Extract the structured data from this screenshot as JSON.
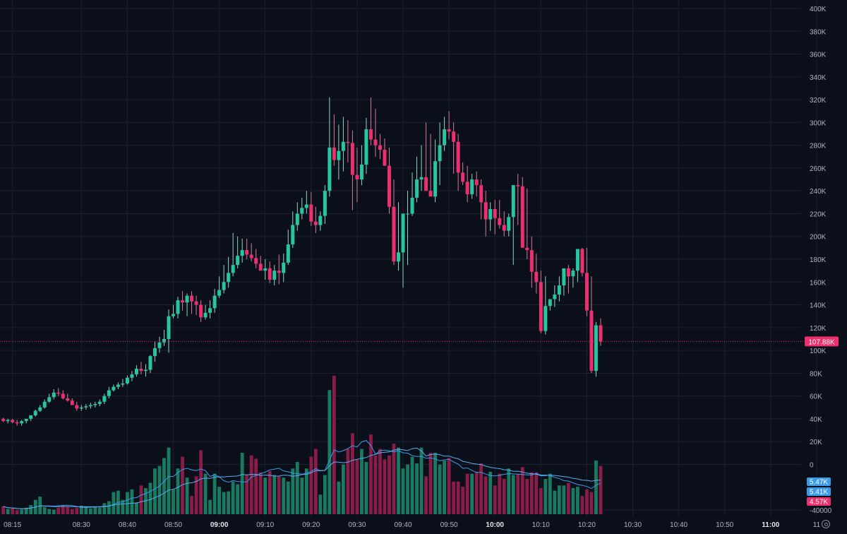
{
  "colors": {
    "background": "#0b0f1a",
    "grid": "#1a2030",
    "axis_text": "#b2b5be",
    "up": "#26c6a0",
    "down": "#ec2f6d",
    "volume_up": "#1a7a5f",
    "volume_down": "#8a1c48",
    "price_line": "#ec2f6d",
    "ma_fast": "#3b9be6",
    "ma_slow": "#5aaef2"
  },
  "icons": {
    "settings": "gear-icon"
  },
  "chart_data": {
    "type": "candlestick",
    "interval_minutes": 1,
    "first_candle_time": "08:13",
    "ylim": [
      -40000,
      400000
    ],
    "y_ticks": [
      "400K",
      "380K",
      "360K",
      "340K",
      "320K",
      "300K",
      "280K",
      "260K",
      "240K",
      "220K",
      "200K",
      "180K",
      "160K",
      "140K",
      "120K",
      "100K",
      "80K",
      "60K",
      "40K",
      "20K",
      "0",
      "-40000"
    ],
    "y_tick_values": [
      400000,
      380000,
      360000,
      340000,
      320000,
      300000,
      280000,
      260000,
      240000,
      220000,
      200000,
      180000,
      160000,
      140000,
      120000,
      100000,
      80000,
      60000,
      40000,
      20000,
      0,
      -40000
    ],
    "x_ticks": [
      "08:15",
      "08:30",
      "08:40",
      "08:50",
      "09:00",
      "09:10",
      "09:20",
      "09:30",
      "09:40",
      "09:50",
      "10:00",
      "10:10",
      "10:20",
      "10:30",
      "10:40",
      "10:50",
      "11:00",
      "11"
    ],
    "x_tick_minutes": [
      2,
      17,
      27,
      37,
      47,
      57,
      67,
      77,
      87,
      97,
      107,
      117,
      127,
      137,
      147,
      157,
      167,
      177
    ],
    "x_ticks_bold": [
      "09:00",
      "10:00",
      "11:00"
    ],
    "last_price": 107880,
    "last_price_label": "107.88K",
    "volume_labels": [
      "5.47K",
      "5.41K",
      "4.57K"
    ],
    "grid": true,
    "candles": {
      "o": [
        40000,
        38000,
        39000,
        37000,
        36000,
        38000,
        40000,
        43000,
        47000,
        50000,
        55000,
        59000,
        63000,
        62000,
        58000,
        56000,
        52000,
        49000,
        50000,
        51000,
        52000,
        53000,
        55000,
        60000,
        65000,
        68000,
        70000,
        71000,
        76000,
        79000,
        84000,
        82000,
        83000,
        95000,
        102000,
        107000,
        110000,
        130000,
        132000,
        144000,
        142000,
        148000,
        143000,
        140000,
        129000,
        133000,
        137000,
        148000,
        153000,
        160000,
        168000,
        175000,
        183000,
        188000,
        184000,
        181000,
        176000,
        170000,
        172000,
        162000,
        170000,
        168000,
        177000,
        193000,
        210000,
        220000,
        225000,
        228000,
        213000,
        210000,
        218000,
        240000,
        278000,
        267000,
        275000,
        283000,
        282000,
        254000,
        250000,
        263000,
        294000,
        285000,
        280000,
        276000,
        262000,
        226000,
        178000,
        186000,
        220000,
        220000,
        234000,
        250000,
        252000,
        240000,
        235000,
        266000,
        280000,
        294000,
        292000,
        283000,
        256000,
        248000,
        237000,
        250000,
        245000,
        230000,
        215000,
        224000,
        216000,
        210000,
        205000,
        217000,
        245000,
        244000,
        190000,
        188000,
        169000,
        160000,
        117000,
        139000,
        145000,
        149000,
        157000,
        172000,
        165000,
        170000,
        189000,
        168000,
        135000,
        82000,
        122000
      ],
      "h": [
        41000,
        40000,
        40000,
        39000,
        39000,
        40000,
        43000,
        48000,
        52000,
        57000,
        62000,
        66000,
        67000,
        65000,
        62000,
        58000,
        55000,
        52000,
        53000,
        54000,
        55000,
        57000,
        62000,
        68000,
        70000,
        72000,
        75000,
        78000,
        82000,
        87000,
        90000,
        88000,
        96000,
        108000,
        112000,
        118000,
        136000,
        140000,
        147000,
        152000,
        150000,
        152000,
        148000,
        144000,
        140000,
        144000,
        154000,
        165000,
        175000,
        182000,
        203000,
        200000,
        198000,
        198000,
        194000,
        189000,
        183000,
        180000,
        178000,
        175000,
        184000,
        185000,
        206000,
        222000,
        230000,
        234000,
        240000,
        239000,
        226000,
        222000,
        245000,
        322000,
        307000,
        298000,
        305000,
        302000,
        293000,
        278000,
        280000,
        304000,
        322000,
        312000,
        290000,
        286000,
        278000,
        250000,
        230000,
        215000,
        240000,
        256000,
        270000,
        280000,
        300000,
        290000,
        285000,
        300000,
        305000,
        310000,
        300000,
        290000,
        265000,
        262000,
        255000,
        257000,
        250000,
        240000,
        230000,
        232000,
        232000,
        222000,
        220000,
        230000,
        255000,
        252000,
        242000,
        200000,
        185000,
        170000,
        165000,
        141000,
        157000,
        165000,
        170000,
        175000,
        172000,
        180000,
        190000,
        190000,
        165000,
        125000,
        128000
      ],
      "l": [
        37000,
        36000,
        36000,
        34000,
        34000,
        36000,
        38000,
        42000,
        46000,
        49000,
        54000,
        57000,
        60000,
        57000,
        55000,
        53000,
        47000,
        47000,
        48000,
        49000,
        50000,
        51000,
        53000,
        58000,
        64000,
        66000,
        68000,
        70000,
        73000,
        77000,
        79000,
        77000,
        80000,
        90000,
        98000,
        104000,
        98000,
        128000,
        128000,
        135000,
        130000,
        132000,
        131000,
        125000,
        127000,
        128000,
        133000,
        146000,
        150000,
        155000,
        165000,
        172000,
        177000,
        180000,
        178000,
        172000,
        170000,
        162000,
        159000,
        157000,
        158000,
        160000,
        175000,
        190000,
        205000,
        215000,
        220000,
        209000,
        203000,
        205000,
        211000,
        235000,
        262000,
        250000,
        257000,
        265000,
        223000,
        230000,
        245000,
        255000,
        280000,
        270000,
        268000,
        262000,
        220000,
        175000,
        170000,
        155000,
        175000,
        218000,
        230000,
        240000,
        240000,
        235000,
        230000,
        245000,
        275000,
        285000,
        255000,
        240000,
        245000,
        230000,
        233000,
        235000,
        215000,
        200000,
        205000,
        202000,
        207000,
        200000,
        200000,
        175000,
        210000,
        220000,
        180000,
        155000,
        150000,
        115000,
        114000,
        135000,
        138000,
        143000,
        148000,
        150000,
        155000,
        160000,
        165000,
        130000,
        80000,
        77000,
        104000
      ],
      "c": [
        38000,
        39000,
        37000,
        36000,
        38000,
        40000,
        43000,
        47000,
        50000,
        55000,
        59000,
        63000,
        62000,
        58000,
        56000,
        52000,
        49000,
        50000,
        51000,
        52000,
        53000,
        55000,
        60000,
        65000,
        68000,
        70000,
        71000,
        76000,
        79000,
        84000,
        82000,
        83000,
        95000,
        102000,
        107000,
        110000,
        130000,
        132000,
        144000,
        142000,
        148000,
        143000,
        140000,
        129000,
        133000,
        137000,
        148000,
        153000,
        160000,
        168000,
        175000,
        183000,
        188000,
        184000,
        181000,
        176000,
        170000,
        172000,
        162000,
        170000,
        168000,
        177000,
        193000,
        210000,
        220000,
        225000,
        228000,
        213000,
        210000,
        218000,
        240000,
        278000,
        267000,
        275000,
        283000,
        282000,
        254000,
        250000,
        263000,
        294000,
        285000,
        280000,
        276000,
        262000,
        226000,
        178000,
        186000,
        220000,
        220000,
        234000,
        250000,
        252000,
        240000,
        235000,
        266000,
        280000,
        294000,
        292000,
        283000,
        256000,
        248000,
        237000,
        250000,
        245000,
        230000,
        215000,
        224000,
        216000,
        210000,
        205000,
        217000,
        245000,
        244000,
        190000,
        188000,
        169000,
        160000,
        117000,
        139000,
        145000,
        149000,
        157000,
        172000,
        165000,
        170000,
        189000,
        168000,
        135000,
        82000,
        122000,
        107880
      ],
      "v": [
        6000,
        4000,
        4500,
        3000,
        3500,
        5000,
        7000,
        11000,
        13500,
        5500,
        4000,
        3500,
        5000,
        7000,
        6000,
        4000,
        5000,
        6500,
        6000,
        4500,
        6000,
        5000,
        8500,
        10000,
        17000,
        18000,
        11000,
        17000,
        19000,
        9000,
        22000,
        20000,
        24000,
        35000,
        37000,
        43000,
        51000,
        19000,
        35000,
        44000,
        28000,
        14000,
        29000,
        49000,
        31000,
        11000,
        31000,
        21000,
        17000,
        17500,
        25000,
        23000,
        47000,
        30000,
        45000,
        42500,
        32000,
        28000,
        33000,
        30000,
        29000,
        28000,
        25000,
        35000,
        40000,
        28000,
        35000,
        44000,
        50000,
        15000,
        30000,
        95000,
        106000,
        25000,
        38000,
        50000,
        62000,
        42000,
        50000,
        40000,
        61000,
        45000,
        50000,
        42000,
        45000,
        54000,
        51000,
        35000,
        38000,
        44000,
        39000,
        51000,
        29000,
        47000,
        47000,
        38000,
        41000,
        43000,
        25000,
        25000,
        21000,
        31000,
        31000,
        32500,
        39000,
        29000,
        32500,
        22000,
        31000,
        27000,
        35000,
        30000,
        31000,
        36000,
        27000,
        32000,
        32000,
        20000,
        27000,
        31000,
        18000,
        22000,
        22000,
        24000,
        20000,
        21000,
        14000,
        19000,
        17000,
        41000,
        37000
      ]
    }
  }
}
